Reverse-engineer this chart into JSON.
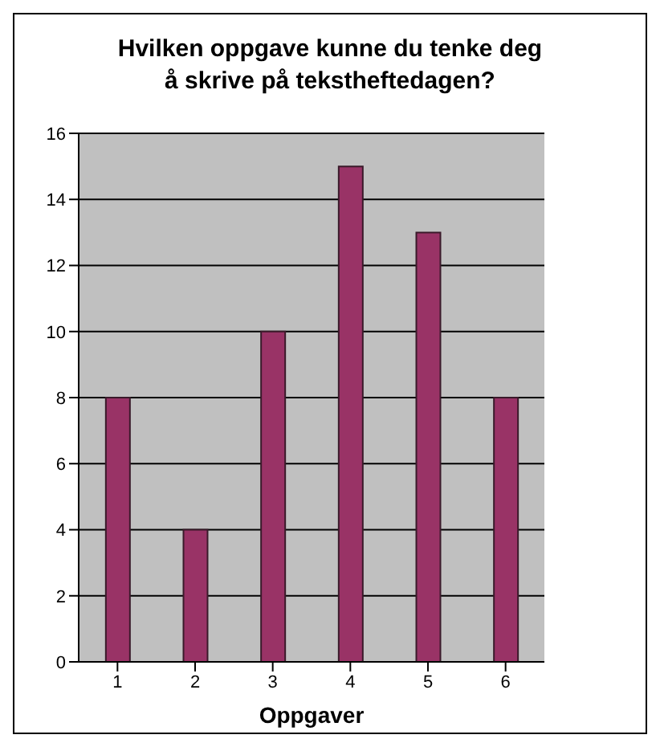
{
  "chart_data": {
    "type": "bar",
    "title": "Hvilken oppgave kunne du tenke deg å skrive på tekstheftedagen?",
    "xlabel": "Oppgaver",
    "categories": [
      "1",
      "2",
      "3",
      "4",
      "5",
      "6"
    ],
    "values": [
      8,
      4,
      10,
      15,
      13,
      8
    ],
    "color": "#993366",
    "ylim": [
      0,
      16
    ],
    "yticks": [
      0,
      2,
      4,
      6,
      8,
      10,
      12,
      14,
      16
    ],
    "grid": "y",
    "legend": false
  }
}
